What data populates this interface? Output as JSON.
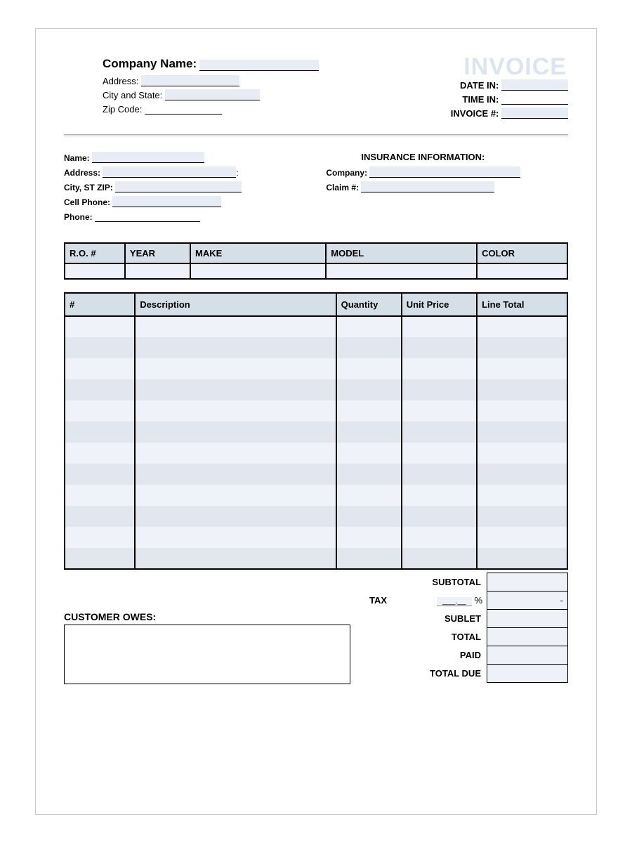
{
  "watermark": "INVOICE",
  "header": {
    "company_name_label": "Company Name:",
    "address_label": "Address:",
    "city_state_label": "City and State:",
    "zip_label": "Zip Code:",
    "date_in_label": "DATE IN:",
    "time_in_label": "TIME IN:",
    "invoice_no_label": "INVOICE #:"
  },
  "customer": {
    "name_label": "Name:",
    "address_label": "Address:",
    "city_st_zip_label": "City, ST ZIP:",
    "cell_label": "Cell Phone:",
    "phone_label": "Phone:"
  },
  "insurance": {
    "title": "INSURANCE INFORMATION:",
    "company_label": "Company:",
    "claim_label": "Claim #:"
  },
  "vehicle_table": {
    "columns": [
      "R.O. #",
      "YEAR",
      "MAKE",
      "MODEL",
      "COLOR"
    ],
    "col_widths": [
      "12%",
      "13%",
      "27%",
      "30%",
      "18%"
    ]
  },
  "items_table": {
    "columns": [
      "#",
      "Description",
      "Quantity",
      "Unit Price",
      "Line Total"
    ],
    "col_widths": [
      "14%",
      "40%",
      "13%",
      "15%",
      "18%"
    ],
    "num_rows": 12
  },
  "totals": {
    "subtotal_label": "SUBTOTAL",
    "tax_label": "TAX",
    "tax_pct_template": "___.__",
    "pct_sign": "%",
    "tax_dash": "-",
    "sublet_label": "SUBLET",
    "total_label": "TOTAL",
    "paid_label": "PAID",
    "total_due_label": "TOTAL DUE",
    "owes_label": "CUSTOMER OWES:"
  },
  "colors": {
    "header_bg": "#d5dfe7",
    "cell_bg_light": "#eff2f8",
    "cell_bg_dark": "#e2e6ef",
    "blank_bg": "#e8edf5",
    "watermark": "#dbe4ef"
  }
}
